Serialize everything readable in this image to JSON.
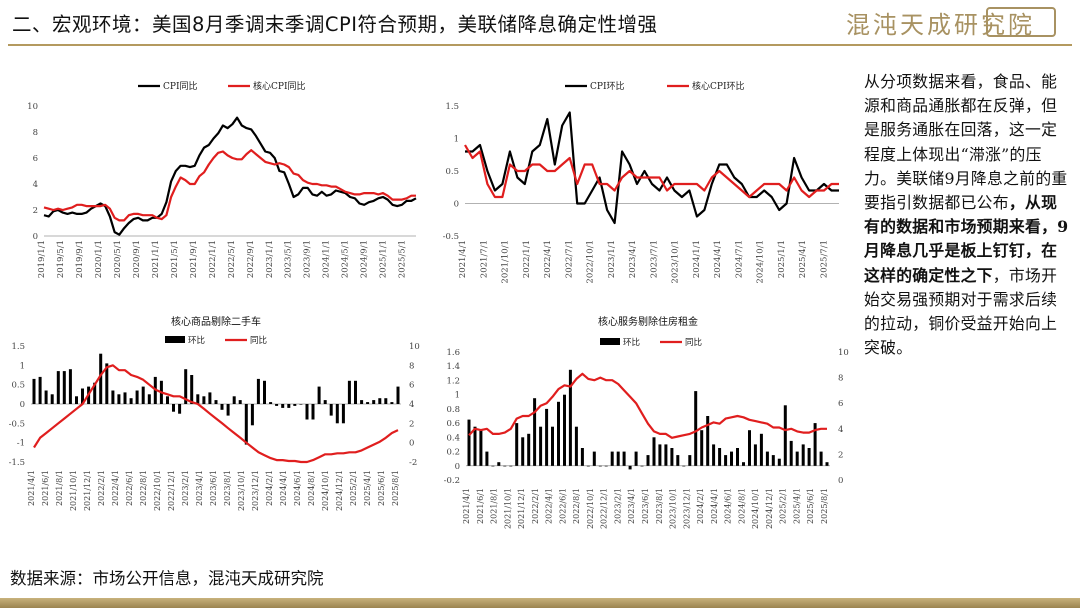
{
  "header": {
    "title": "二、宏观环境：美国8月季调末季调CPI符合预期，美联储降息确定性增强",
    "logo_text": "混沌天成研究院",
    "accent": "#b49a5f"
  },
  "right_text": {
    "normal_1": "从分项数据来看，食品、能源和商品通胀都在反弹，但是服务通胀在回落，这一定程度上体现出“滞涨”的压力。美联储9月降息之前的重要指引数据都已公布",
    "bold": "，从现有的数据和市场预期来看，9月降息几乎是板上钉钉，在这样的确定性之下",
    "normal_2": "，市场开始交易强预期对于需求后续的拉动，铜价受益开始向上突破。"
  },
  "source": "数据来源：市场公开信息，混沌天成研究院",
  "chart_data": [
    {
      "type": "line",
      "title": "",
      "series": [
        {
          "name": "CPI同比",
          "color": "#000000",
          "values": [
            1.6,
            1.5,
            1.9,
            2.0,
            1.8,
            1.7,
            1.8,
            1.7,
            1.7,
            1.8,
            2.1,
            2.3,
            2.5,
            2.3,
            1.5,
            0.3,
            0.1,
            0.6,
            1.0,
            1.3,
            1.4,
            1.2,
            1.2,
            1.4,
            1.4,
            1.7,
            2.6,
            4.2,
            5.0,
            5.4,
            5.4,
            5.3,
            5.4,
            6.2,
            6.8,
            7.0,
            7.5,
            7.9,
            8.5,
            8.3,
            8.6,
            9.1,
            8.5,
            8.3,
            8.2,
            7.7,
            7.1,
            6.5,
            6.4,
            6.0,
            5.0,
            4.9,
            4.0,
            3.0,
            3.2,
            3.7,
            3.7,
            3.2,
            3.1,
            3.4,
            3.1,
            3.2,
            3.5,
            3.4,
            3.3,
            3.0,
            2.9,
            2.5,
            2.4,
            2.6,
            2.7,
            2.9,
            3.0,
            2.8,
            2.4,
            2.3,
            2.4,
            2.7,
            2.7,
            2.9
          ]
        },
        {
          "name": "核心CPI同比",
          "color": "#e01e1e",
          "values": [
            2.2,
            2.1,
            2.0,
            2.1,
            2.0,
            2.1,
            2.2,
            2.4,
            2.4,
            2.3,
            2.3,
            2.3,
            2.3,
            2.4,
            2.1,
            1.4,
            1.2,
            1.2,
            1.6,
            1.7,
            1.7,
            1.6,
            1.6,
            1.6,
            1.4,
            1.3,
            1.6,
            3.0,
            3.8,
            4.5,
            4.3,
            4.0,
            4.0,
            4.6,
            4.9,
            5.5,
            6.0,
            6.4,
            6.5,
            6.2,
            6.0,
            5.9,
            5.9,
            6.3,
            6.6,
            6.3,
            6.0,
            5.7,
            5.6,
            5.5,
            5.6,
            5.5,
            5.3,
            4.8,
            4.7,
            4.3,
            4.1,
            4.0,
            4.0,
            3.9,
            3.9,
            3.8,
            3.8,
            3.6,
            3.4,
            3.3,
            3.2,
            3.2,
            3.3,
            3.3,
            3.3,
            3.2,
            3.3,
            3.1,
            2.8,
            2.8,
            2.8,
            2.9,
            3.1,
            3.1
          ]
        }
      ],
      "x_labels": [
        "2019/1/1",
        "2019/5/1",
        "2019/9/1",
        "2020/1/1",
        "2020/5/1",
        "2020/9/1",
        "2021/1/1",
        "2021/5/1",
        "2021/9/1",
        "2022/1/1",
        "2022/5/1",
        "2022/9/1",
        "2023/1/1",
        "2023/5/1",
        "2023/9/1",
        "2024/1/1",
        "2024/5/1",
        "2024/9/1",
        "2025/1/1",
        "2025/5/1"
      ],
      "yticks": [
        0,
        2,
        4,
        6,
        8,
        10
      ],
      "ylim": [
        0,
        10
      ]
    },
    {
      "type": "line",
      "title": "",
      "series": [
        {
          "name": "CPI环比",
          "color": "#000000",
          "values": [
            0.8,
            0.8,
            0.9,
            0.5,
            0.2,
            0.3,
            0.8,
            0.4,
            0.3,
            0.8,
            0.9,
            1.3,
            0.6,
            1.2,
            1.4,
            0.0,
            0.0,
            0.2,
            0.4,
            -0.1,
            -0.3,
            0.8,
            0.6,
            0.3,
            0.5,
            0.3,
            0.2,
            0.4,
            0.2,
            0.1,
            0.2,
            -0.2,
            -0.1,
            0.3,
            0.6,
            0.6,
            0.4,
            0.3,
            0.1,
            0.1,
            0.2,
            0.1,
            -0.1,
            0.0,
            0.7,
            0.4,
            0.2,
            0.2,
            0.3,
            0.2,
            0.2
          ]
        },
        {
          "name": "核心CPI环比",
          "color": "#e01e1e",
          "values": [
            0.9,
            0.7,
            0.8,
            0.3,
            0.1,
            0.1,
            0.6,
            0.5,
            0.5,
            0.6,
            0.6,
            0.5,
            0.5,
            0.6,
            0.7,
            0.3,
            0.6,
            0.6,
            0.3,
            0.3,
            0.2,
            0.4,
            0.5,
            0.4,
            0.4,
            0.4,
            0.4,
            0.2,
            0.3,
            0.3,
            0.3,
            0.3,
            0.2,
            0.4,
            0.5,
            0.4,
            0.3,
            0.2,
            0.1,
            0.2,
            0.3,
            0.3,
            0.3,
            0.2,
            0.4,
            0.2,
            0.1,
            0.2,
            0.2,
            0.3,
            0.3
          ]
        }
      ],
      "x_labels": [
        "2021/4/1",
        "2021/7/1",
        "2021/10/1",
        "2022/1/1",
        "2022/4/1",
        "2022/7/1",
        "2022/10/1",
        "2023/1/1",
        "2023/4/1",
        "2023/7/1",
        "2023/10/1",
        "2024/1/1",
        "2024/4/1",
        "2024/7/1",
        "2024/10/1",
        "2025/1/1",
        "2025/4/1",
        "2025/7/1"
      ],
      "yticks": [
        -0.5,
        0,
        0.5,
        1,
        1.5
      ],
      "ylim": [
        -0.5,
        1.5
      ]
    },
    {
      "type": "bar",
      "title": "核心商品剔除二手车",
      "bar_series": {
        "name": "环比",
        "color": "#000000",
        "values": [
          0.65,
          0.7,
          0.35,
          0.25,
          0.85,
          0.85,
          0.9,
          0.2,
          0.4,
          0.45,
          0.55,
          1.3,
          1.05,
          0.35,
          0.25,
          0.3,
          0.15,
          0.35,
          0.45,
          0.25,
          0.7,
          0.6,
          0.2,
          -0.2,
          -0.25,
          0.9,
          0.75,
          0.25,
          0.2,
          0.3,
          0.1,
          -0.15,
          -0.3,
          0.2,
          0.1,
          -1.05,
          -0.55,
          0.65,
          0.6,
          0.05,
          -0.05,
          -0.1,
          -0.1,
          -0.05,
          0.0,
          -0.4,
          -0.4,
          0.45,
          0.1,
          -0.3,
          -0.5,
          -0.5,
          0.6,
          0.6,
          0.1,
          0.05,
          0.1,
          0.15,
          0.15,
          0.05,
          0.45
        ]
      },
      "line_series": {
        "name": "同比",
        "color": "#e01e1e",
        "values": [
          -0.5,
          0.5,
          1.0,
          1.5,
          2.0,
          2.5,
          3.0,
          3.5,
          4.0,
          5.0,
          6.0,
          7.0,
          7.8,
          8.0,
          7.5,
          7.5,
          7.0,
          6.8,
          6.5,
          6.0,
          5.5,
          5.2,
          5.0,
          4.8,
          4.8,
          4.5,
          4.2,
          4.0,
          3.5,
          3.0,
          2.5,
          2.0,
          1.5,
          1.0,
          0.5,
          0.0,
          -0.5,
          -1.0,
          -1.3,
          -1.6,
          -1.8,
          -1.8,
          -1.9,
          -1.9,
          -2.0,
          -2.0,
          -1.8,
          -1.5,
          -1.2,
          -1.2,
          -1.1,
          -1.1,
          -1.0,
          -1.0,
          -0.8,
          -0.5,
          -0.2,
          0.1,
          0.5,
          1.0,
          1.3
        ]
      },
      "x_labels": [
        "2021/4/1",
        "2021/6/1",
        "2021/8/1",
        "2021/10/1",
        "2021/12/1",
        "2022/2/1",
        "2022/4/1",
        "2022/6/1",
        "2022/8/1",
        "2022/10/1",
        "2022/12/1",
        "2023/2/1",
        "2023/4/1",
        "2023/6/1",
        "2023/8/1",
        "2023/10/1",
        "2023/12/1",
        "2024/2/1",
        "2024/4/1",
        "2024/6/1",
        "2024/8/1",
        "2024/10/1",
        "2024/12/1",
        "2025/2/1",
        "2025/4/1",
        "2025/6/1",
        "2025/8/1"
      ],
      "yticks_left": [
        -1.5,
        -1,
        -0.5,
        0,
        0.5,
        1,
        1.5
      ],
      "ylim_left": [
        -1.5,
        1.5
      ],
      "yticks_right": [
        -2,
        0,
        2,
        4,
        6,
        8,
        10
      ],
      "ylim_right": [
        -2,
        10
      ]
    },
    {
      "type": "bar",
      "title": "核心服务剔除住房租金",
      "bar_series": {
        "name": "环比",
        "color": "#000000",
        "values": [
          0.65,
          0.55,
          0.5,
          0.2,
          0.0,
          0.05,
          0.0,
          0.0,
          0.6,
          0.4,
          0.45,
          0.95,
          0.55,
          0.8,
          0.55,
          0.9,
          1.0,
          1.35,
          0.55,
          0.25,
          0.0,
          0.2,
          0.0,
          0.0,
          0.2,
          0.2,
          0.2,
          -0.05,
          0.2,
          0.0,
          0.15,
          0.4,
          0.3,
          0.3,
          0.25,
          0.15,
          0.0,
          0.15,
          1.05,
          0.5,
          0.7,
          0.3,
          0.25,
          0.15,
          0.2,
          0.25,
          0.05,
          0.5,
          0.3,
          0.45,
          0.2,
          0.15,
          0.1,
          0.85,
          0.35,
          0.2,
          0.3,
          0.25,
          0.6,
          0.2,
          0.05
        ]
      },
      "line_series": {
        "name": "同比",
        "color": "#e01e1e",
        "values": [
          3.5,
          4.0,
          3.9,
          4.0,
          3.6,
          3.6,
          3.7,
          4.0,
          4.8,
          5.0,
          5.0,
          5.3,
          5.8,
          6.0,
          6.5,
          7.1,
          7.4,
          7.3,
          7.9,
          8.3,
          7.9,
          7.8,
          8.0,
          7.8,
          7.8,
          7.5,
          7.0,
          6.5,
          6.0,
          5.2,
          4.4,
          3.8,
          3.6,
          3.6,
          3.3,
          3.4,
          3.5,
          3.6,
          3.8,
          4.1,
          4.3,
          4.5,
          4.4,
          4.8,
          4.9,
          5.0,
          4.9,
          4.7,
          4.6,
          4.5,
          4.4,
          4.1,
          4.1,
          3.9,
          4.0,
          3.8,
          3.7,
          3.7,
          3.9,
          4.0,
          4.0
        ]
      },
      "x_labels": [
        "2021/4/1",
        "2021/6/1",
        "2021/8/1",
        "2021/10/1",
        "2021/12/1",
        "2022/2/1",
        "2022/4/1",
        "2022/6/1",
        "2022/8/1",
        "2022/10/1",
        "2022/12/1",
        "2023/2/1",
        "2023/4/1",
        "2023/6/1",
        "2023/8/1",
        "2023/10/1",
        "2023/12/1",
        "2024/2/1",
        "2024/4/1",
        "2024/6/1",
        "2024/8/1",
        "2024/10/1",
        "2024/12/1",
        "2025/2/1",
        "2025/4/1",
        "2025/6/1",
        "2025/8/1"
      ],
      "yticks_left": [
        -0.2,
        0,
        0.2,
        0.4,
        0.6,
        0.8,
        1,
        1.2,
        1.4,
        1.6
      ],
      "ylim_left": [
        -0.2,
        1.6
      ],
      "yticks_right": [
        0,
        2,
        4,
        6,
        8,
        10
      ],
      "ylim_right": [
        0,
        10
      ]
    }
  ]
}
